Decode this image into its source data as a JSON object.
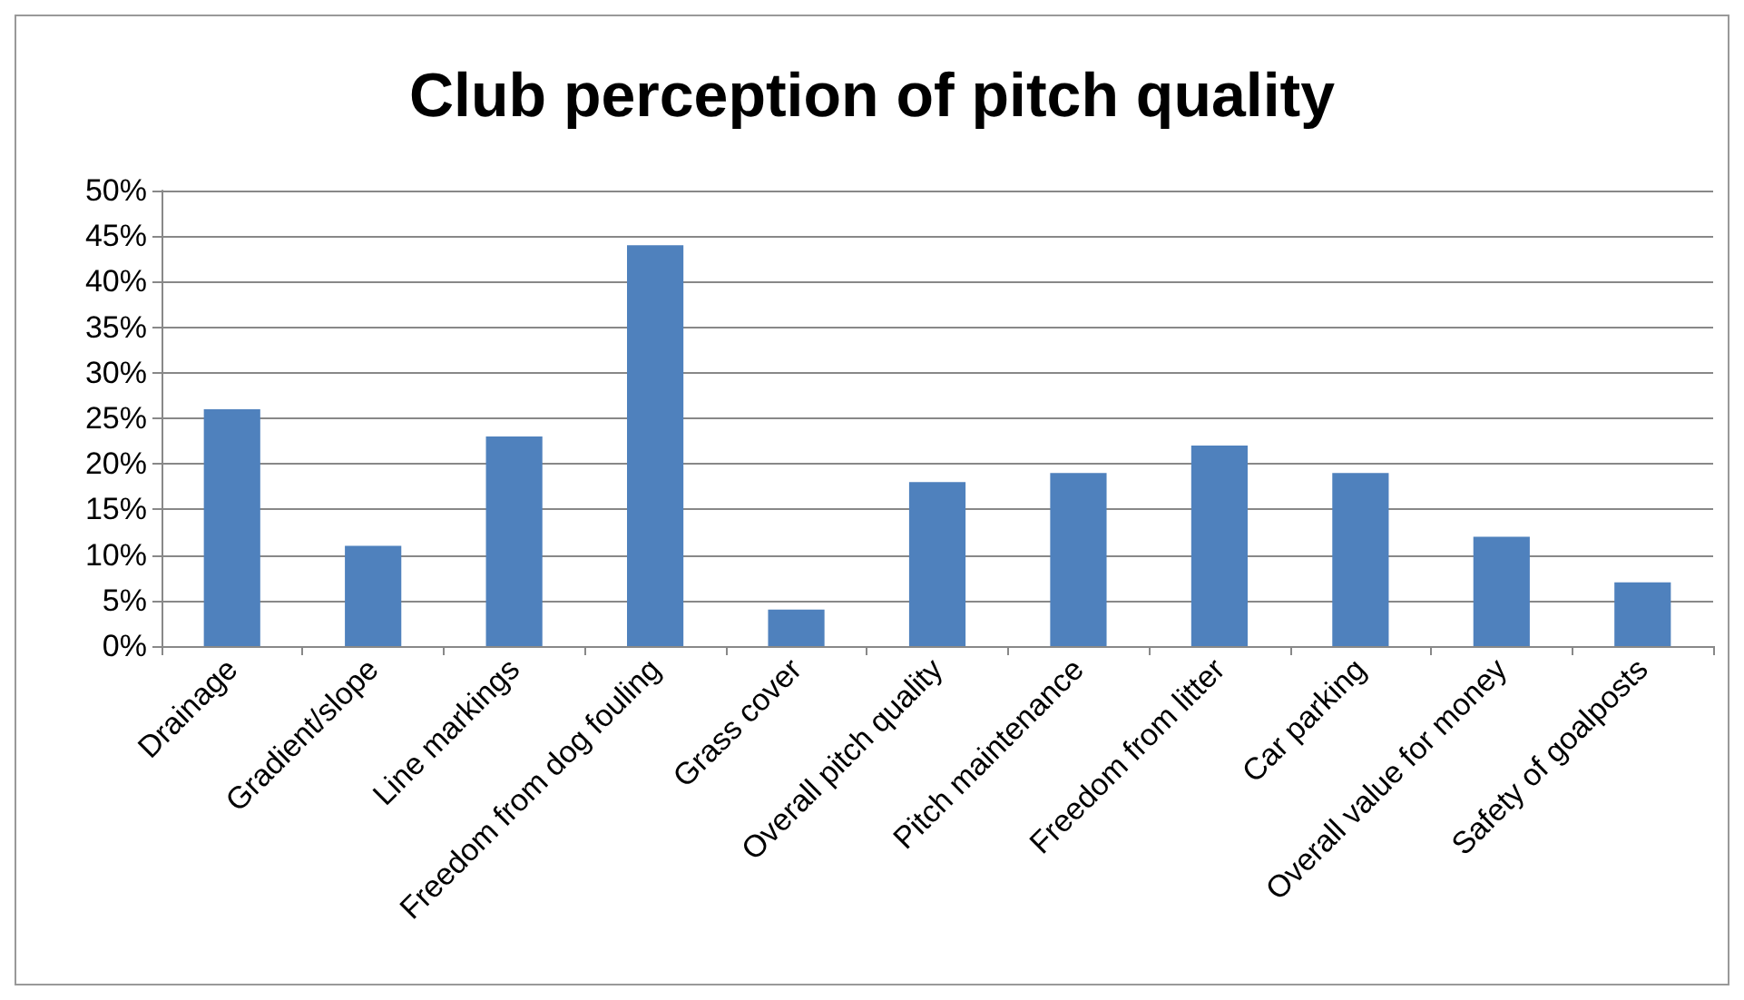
{
  "chart_data": {
    "type": "bar",
    "title": "Club perception of pitch quality",
    "categories": [
      "Drainage",
      "Gradient/slope",
      "Line markings",
      "Freedom from dog fouling",
      "Grass cover",
      "Overall pitch quality",
      "Pitch maintenance",
      "Freedom from litter",
      "Car parking",
      "Overall value for money",
      "Safety of goalposts"
    ],
    "values": [
      26,
      11,
      23,
      44,
      4,
      18,
      19,
      22,
      19,
      12,
      7
    ],
    "color": "#4f81bd",
    "ylim": [
      0,
      50
    ],
    "yticks": [
      {
        "value": 0,
        "label": "0%"
      },
      {
        "value": 5,
        "label": "5%"
      },
      {
        "value": 10,
        "label": "10%"
      },
      {
        "value": 15,
        "label": "15%"
      },
      {
        "value": 20,
        "label": "20%"
      },
      {
        "value": 25,
        "label": "25%"
      },
      {
        "value": 30,
        "label": "30%"
      },
      {
        "value": 35,
        "label": "35%"
      },
      {
        "value": 40,
        "label": "40%"
      },
      {
        "value": 45,
        "label": "45%"
      },
      {
        "value": 50,
        "label": "50%"
      }
    ],
    "grid": true
  }
}
